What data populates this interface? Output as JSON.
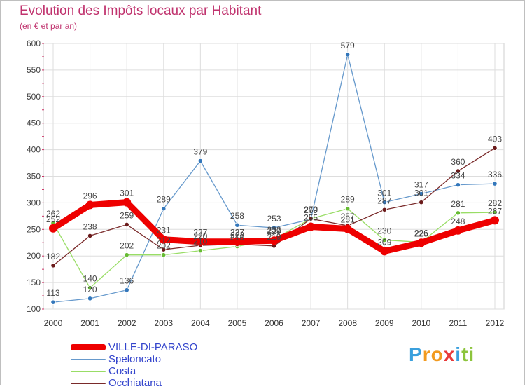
{
  "chart_data": {
    "type": "line",
    "title": "Evolution des Impôts locaux par Habitant",
    "subtitle": "(en € et par an)",
    "xlabel": "",
    "ylabel": "",
    "x": [
      "2000",
      "2001",
      "2002",
      "2003",
      "2004",
      "2005",
      "2006",
      "2007",
      "2008",
      "2009",
      "2010",
      "2011",
      "2012"
    ],
    "ylim": [
      100,
      600
    ],
    "yticks": [
      "100",
      "150",
      "200",
      "250",
      "300",
      "350",
      "400",
      "450",
      "500",
      "550",
      "600"
    ],
    "grid": true,
    "legend_position": "bottom-left",
    "series": [
      {
        "name": "VILLE-DI-PARASO",
        "values": [
          252,
          296,
          301,
          231,
          227,
          227,
          229,
          255,
          251,
          209,
          225,
          248,
          267
        ],
        "labels": [
          "252",
          "296",
          "301",
          "231",
          "227",
          "227",
          "229",
          "255",
          "251",
          "209",
          "225",
          "248",
          "267"
        ],
        "color": "#ee0000",
        "emphasis": true
      },
      {
        "name": "Speloncato",
        "values": [
          113,
          120,
          136,
          289,
          379,
          258,
          253,
          269,
          579,
          301,
          317,
          334,
          336
        ],
        "labels": [
          "113",
          "120",
          "136",
          "289",
          "379",
          "258",
          "253",
          "269",
          "579",
          "301",
          "317",
          "334",
          "336"
        ],
        "color": "#6699cc",
        "marker_color": "#3377bb",
        "emphasis": false
      },
      {
        "name": "Costa",
        "values": [
          262,
          140,
          202,
          202,
          210,
          218,
          232,
          270,
          289,
          230,
          226,
          281,
          282
        ],
        "labels": [
          "262",
          "140",
          "202",
          "202",
          "210",
          "218",
          "232",
          "270",
          "289",
          "230",
          "226",
          "281",
          "282"
        ],
        "color": "#99dd66",
        "marker_color": "#66bb33",
        "emphasis": false
      },
      {
        "name": "Occhiatana",
        "values": [
          182,
          238,
          259,
          212,
          220,
          222,
          219,
          270,
          257,
          287,
          301,
          360,
          403
        ],
        "labels": [
          "182",
          "238",
          "259",
          "212",
          "220",
          "222",
          "219",
          "270",
          "257",
          "287",
          "301",
          "360",
          "403"
        ],
        "color": "#7a2a2a",
        "marker_color": "#6a1a1a",
        "emphasis": false
      }
    ]
  },
  "brand": {
    "letters": [
      "P",
      "r",
      "o",
      "x",
      "i",
      "t",
      "i"
    ],
    "colors": [
      "#3aa0dd",
      "#f29a1f",
      "#f29a1f",
      "#e83a3a",
      "#3aa0dd",
      "#8cc43c",
      "#8cc43c"
    ]
  }
}
